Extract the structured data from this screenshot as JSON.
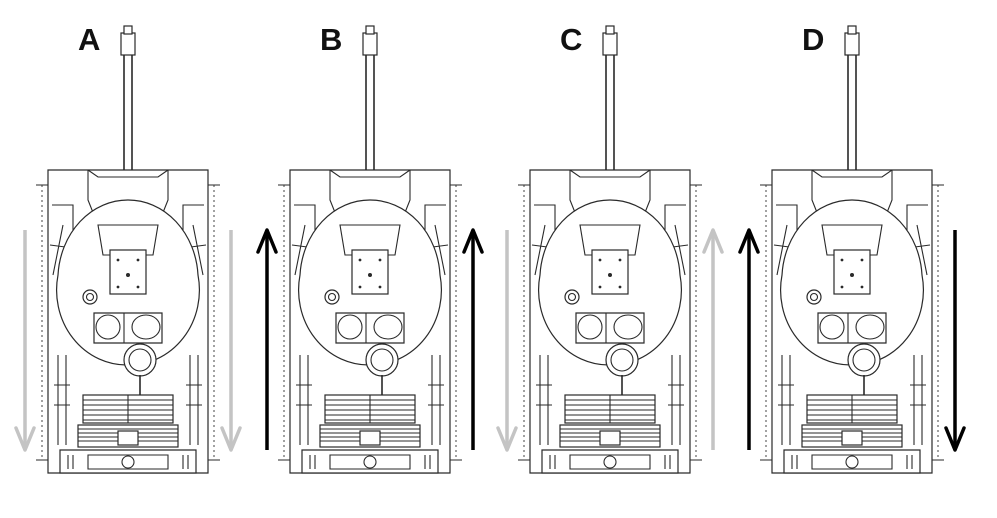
{
  "panels": [
    {
      "label": "A",
      "left_track": "backward",
      "right_track": "backward",
      "left_active": false,
      "right_active": false
    },
    {
      "label": "B",
      "left_track": "forward",
      "right_track": "forward",
      "left_active": true,
      "right_active": true
    },
    {
      "label": "C",
      "left_track": "backward",
      "right_track": "forward",
      "left_active": false,
      "right_active": false
    },
    {
      "label": "D",
      "left_track": "forward",
      "right_track": "backward",
      "left_active": true,
      "right_active": true
    }
  ],
  "colors": {
    "active_arrow": "#000000",
    "inactive_arrow": "#c4c4c4",
    "line": "#2a2a2a",
    "background": "#ffffff"
  },
  "icons": {
    "vehicle": "tank-top-view-icon",
    "arrow_up": "arrow-up-icon",
    "arrow_down": "arrow-down-icon"
  }
}
